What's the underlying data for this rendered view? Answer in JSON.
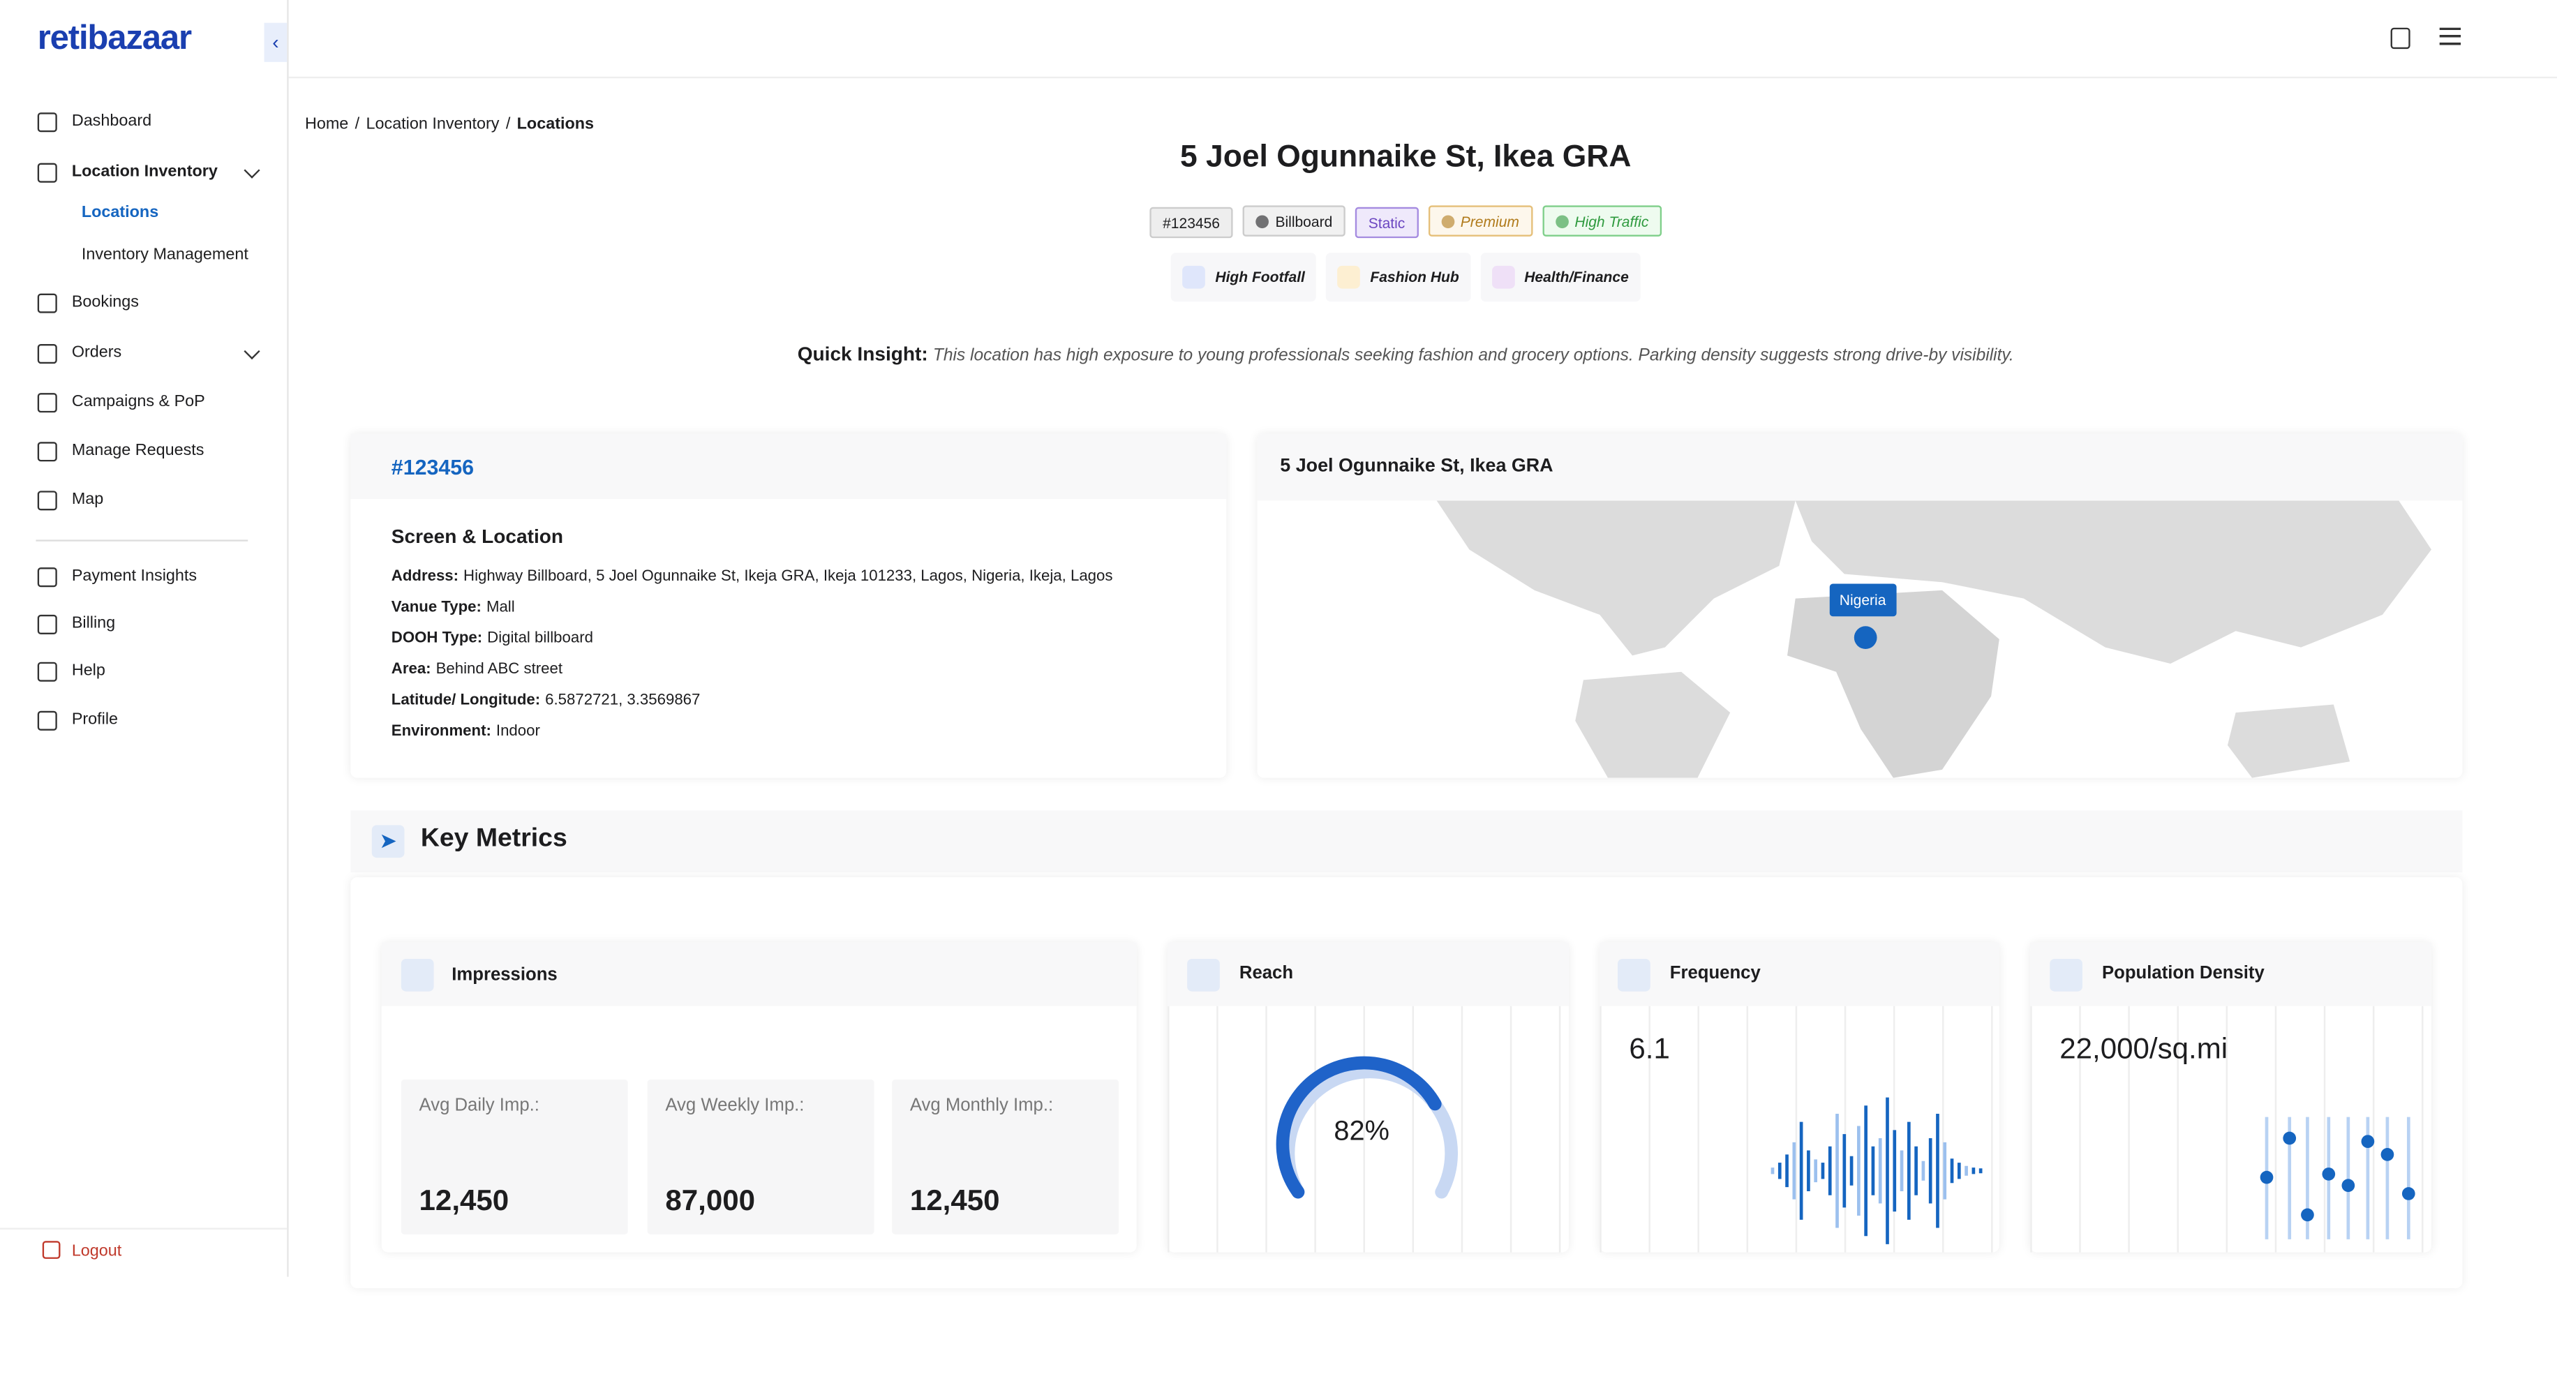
{
  "brand": "retibazaar",
  "sidebar": {
    "items": [
      {
        "label": "Dashboard",
        "icon": "dash"
      },
      {
        "label": "Location Inventory",
        "icon": "loc",
        "children": [
          "Locations",
          "Inventory Management"
        ]
      },
      {
        "label": "Bookings",
        "icon": "book"
      },
      {
        "label": "Orders",
        "icon": "grid"
      },
      {
        "label": "Campaigns & PoP",
        "icon": "camp"
      },
      {
        "label": "Manage Requests",
        "icon": "req"
      },
      {
        "label": "Map",
        "icon": "map"
      },
      {
        "label": "Payment Insights",
        "icon": "pay"
      },
      {
        "label": "Billing",
        "icon": "bill"
      },
      {
        "label": "Help",
        "icon": "help"
      },
      {
        "label": "Profile",
        "icon": "prof"
      }
    ],
    "logout": "Logout"
  },
  "breadcrumb": {
    "items": [
      "Home",
      "Location Inventory",
      "Locations"
    ],
    "separator": "/"
  },
  "header": {
    "title": "5 Joel Ogunnaike St, Ikea GRA",
    "tags": [
      "#123456",
      "Billboard",
      "Static",
      "Premium",
      "High Traffic"
    ],
    "highlights": [
      "High Footfall",
      "Fashion Hub",
      "Health/Finance"
    ],
    "insight_label": "Quick Insight:",
    "insight": "This location has high exposure to young professionals seeking fashion and grocery options. Parking density suggests strong drive-by visibility."
  },
  "details": {
    "id": "#123456",
    "section": "Screen & Location",
    "fields": [
      [
        "Address:",
        "Highway Billboard, 5 Joel Ogunnaike St, Ikeja GRA, Ikeja 101233, Lagos, Nigeria, Ikeja, Lagos"
      ],
      [
        "Vanue Type:",
        "Mall"
      ],
      [
        "DOOH Type:",
        "Digital billboard"
      ],
      [
        "Area:",
        "Behind ABC street"
      ],
      [
        "Latitude/ Longitude:",
        "6.5872721, 3.3569867"
      ],
      [
        "Environment:",
        "Indoor"
      ]
    ]
  },
  "map": {
    "title": "5 Joel Ogunnaike St, Ikea GRA",
    "marker": "Nigeria"
  },
  "metrics": {
    "title": "Key Metrics",
    "impressions": {
      "title": "Impressions",
      "stats": [
        [
          "Avg Daily Imp.:",
          "12,450"
        ],
        [
          "Avg Weekly Imp.:",
          "87,000"
        ],
        [
          "Avg Monthly Imp.:",
          "12,450"
        ]
      ]
    },
    "reach": {
      "title": "Reach",
      "value": "82%"
    },
    "frequency": {
      "title": "Frequency",
      "value": "6.1"
    },
    "density": {
      "title": "Population Density",
      "value": "22,000/sq.mi"
    }
  }
}
